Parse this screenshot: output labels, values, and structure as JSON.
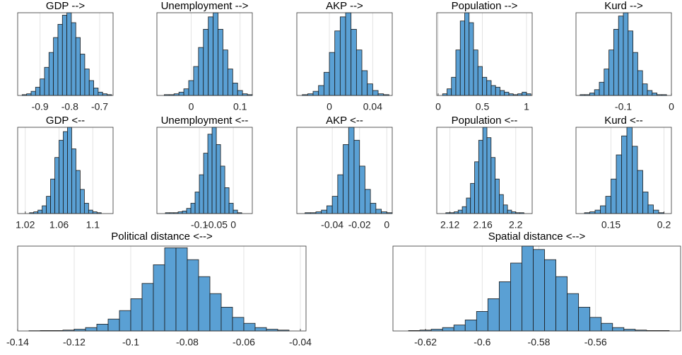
{
  "chart_data": [
    {
      "type": "histogram",
      "title": "GDP -->",
      "bins": [
        -0.96,
        -0.945,
        -0.93,
        -0.915,
        -0.9,
        -0.885,
        -0.87,
        -0.855,
        -0.84,
        -0.825,
        -0.81,
        -0.795,
        -0.78,
        -0.765,
        -0.75,
        -0.735,
        -0.72,
        -0.705,
        -0.69,
        -0.675,
        -0.66
      ],
      "values": [
        1,
        2,
        5,
        10,
        20,
        34,
        52,
        70,
        86,
        97,
        100,
        88,
        70,
        50,
        32,
        18,
        9,
        4,
        2,
        1
      ],
      "color": "#5aa0d4",
      "xlim": [
        -0.975,
        -0.655
      ],
      "xticks": [
        -0.9,
        -0.8,
        -0.7
      ],
      "ylim": [
        0,
        100
      ],
      "grid": true
    },
    {
      "type": "histogram",
      "title": "Unemployment -->",
      "bins": [
        -0.055,
        -0.045,
        -0.035,
        -0.025,
        -0.015,
        -0.005,
        0.005,
        0.015,
        0.025,
        0.035,
        0.045,
        0.055,
        0.065,
        0.075,
        0.085,
        0.095,
        0.105,
        0.115,
        0.125
      ],
      "values": [
        1,
        1,
        2,
        4,
        8,
        18,
        35,
        58,
        80,
        95,
        100,
        80,
        55,
        32,
        15,
        6,
        2,
        1
      ],
      "color": "#5aa0d4",
      "xlim": [
        -0.07,
        0.125
      ],
      "xticks": [
        0,
        0.1
      ],
      "ylim": [
        0,
        100
      ],
      "grid": true
    },
    {
      "type": "histogram",
      "title": "AKP -->",
      "bins": [
        -0.025,
        -0.02,
        -0.015,
        -0.01,
        -0.005,
        0,
        0.005,
        0.01,
        0.015,
        0.02,
        0.025,
        0.03,
        0.035,
        0.04,
        0.045,
        0.05,
        0.055
      ],
      "values": [
        1,
        2,
        5,
        12,
        28,
        52,
        78,
        95,
        100,
        80,
        55,
        30,
        14,
        6,
        2,
        1
      ],
      "color": "#5aa0d4",
      "xlim": [
        -0.03,
        0.058
      ],
      "xticks": [
        0,
        0.04
      ],
      "ylim": [
        0,
        100
      ],
      "grid": true
    },
    {
      "type": "histogram",
      "title": "Population -->",
      "bins": [
        0.05,
        0.1,
        0.15,
        0.2,
        0.25,
        0.3,
        0.35,
        0.4,
        0.45,
        0.5,
        0.55,
        0.6,
        0.65,
        0.7,
        0.75,
        0.8,
        0.85,
        0.9,
        0.95,
        1,
        1.05
      ],
      "values": [
        2,
        8,
        22,
        55,
        90,
        100,
        88,
        55,
        35,
        22,
        18,
        12,
        10,
        6,
        4,
        2,
        1,
        2,
        4,
        2
      ],
      "color": "#5aa0d4",
      "xlim": [
        -0.016,
        1.064
      ],
      "xticks": [
        0,
        0.5,
        1
      ],
      "ylim": [
        0,
        100
      ],
      "grid": true
    },
    {
      "type": "histogram",
      "title": "Kurd -->",
      "bins": [
        -0.19,
        -0.18,
        -0.17,
        -0.16,
        -0.15,
        -0.14,
        -0.13,
        -0.12,
        -0.11,
        -0.1,
        -0.09,
        -0.08,
        -0.07,
        -0.06,
        -0.05,
        -0.04,
        -0.03,
        -0.02,
        -0.01
      ],
      "values": [
        1,
        1,
        3,
        7,
        16,
        32,
        55,
        80,
        96,
        100,
        78,
        52,
        30,
        14,
        6,
        3,
        1,
        1
      ],
      "color": "#5aa0d4",
      "xlim": [
        -0.1985,
        0
      ],
      "xticks": [
        -0.1,
        0
      ],
      "ylim": [
        0,
        100
      ],
      "grid": true
    },
    {
      "type": "histogram",
      "title": "GDP <--",
      "bins": [
        1.025,
        1.03,
        1.035,
        1.04,
        1.045,
        1.05,
        1.055,
        1.06,
        1.065,
        1.07,
        1.075,
        1.08,
        1.085,
        1.09,
        1.095,
        1.1,
        1.105,
        1.11
      ],
      "values": [
        1,
        2,
        4,
        9,
        20,
        40,
        65,
        85,
        95,
        100,
        75,
        50,
        28,
        12,
        4,
        2,
        1
      ],
      "color": "#5aa0d4",
      "xlim": [
        1.011,
        1.124
      ],
      "xticks": [
        1.02,
        1.06,
        1.1
      ],
      "ylim": [
        0,
        100
      ],
      "grid": true
    },
    {
      "type": "histogram",
      "title": "Unemployment <--",
      "bins": [
        -0.2,
        -0.1875,
        -0.175,
        -0.1625,
        -0.15,
        -0.1375,
        -0.125,
        -0.1125,
        -0.1,
        -0.0875,
        -0.075,
        -0.0625,
        -0.05,
        -0.0375,
        -0.025,
        -0.0125,
        0,
        0.0125,
        0.025
      ],
      "values": [
        1,
        1,
        1,
        2,
        3,
        6,
        12,
        25,
        45,
        70,
        92,
        100,
        80,
        55,
        30,
        12,
        4,
        1
      ],
      "color": "#5aa0d4",
      "xlim": [
        -0.225,
        0.056
      ],
      "xticks": [
        -0.1,
        -0.05,
        0
      ],
      "ylim": [
        0,
        100
      ],
      "grid": true
    },
    {
      "type": "histogram",
      "title": "AKP <--",
      "bins": [
        -0.06,
        -0.056,
        -0.052,
        -0.048,
        -0.044,
        -0.04,
        -0.036,
        -0.032,
        -0.028,
        -0.024,
        -0.02,
        -0.016,
        -0.012,
        -0.008,
        -0.004,
        0,
        0.004
      ],
      "values": [
        1,
        1,
        2,
        4,
        9,
        20,
        45,
        80,
        100,
        85,
        55,
        28,
        12,
        5,
        2,
        1
      ],
      "color": "#5aa0d4",
      "xlim": [
        -0.066,
        0.004
      ],
      "xticks": [
        -0.04,
        -0.02,
        0
      ],
      "ylim": [
        0,
        100
      ],
      "grid": true
    },
    {
      "type": "histogram",
      "title": "Population <--",
      "bins": [
        2.115,
        2.12,
        2.125,
        2.13,
        2.135,
        2.14,
        2.145,
        2.15,
        2.155,
        2.16,
        2.165,
        2.17,
        2.175,
        2.18,
        2.185,
        2.19,
        2.195,
        2.2,
        2.205,
        2.21
      ],
      "values": [
        1,
        1,
        2,
        4,
        8,
        18,
        35,
        60,
        85,
        100,
        88,
        65,
        40,
        22,
        10,
        4,
        2,
        1,
        1
      ],
      "color": "#5aa0d4",
      "xlim": [
        2.104,
        2.22
      ],
      "xticks": [
        2.12,
        2.16,
        2.2
      ],
      "ylim": [
        0,
        100
      ],
      "grid": true
    },
    {
      "type": "histogram",
      "title": "Kurd <--",
      "bins": [
        0.125,
        0.13,
        0.135,
        0.14,
        0.145,
        0.15,
        0.155,
        0.16,
        0.165,
        0.17,
        0.175,
        0.18,
        0.185,
        0.19,
        0.195,
        0.2
      ],
      "values": [
        1,
        2,
        4,
        9,
        20,
        40,
        68,
        90,
        100,
        78,
        50,
        25,
        10,
        4,
        1
      ],
      "color": "#5aa0d4",
      "xlim": [
        0.117,
        0.207
      ],
      "xticks": [
        0.15,
        0.2
      ],
      "ylim": [
        0,
        100
      ],
      "grid": true
    },
    {
      "type": "histogram",
      "title": "Political distance <-->",
      "bins": [
        -0.136,
        -0.132,
        -0.128,
        -0.124,
        -0.12,
        -0.116,
        -0.112,
        -0.108,
        -0.104,
        -0.1,
        -0.096,
        -0.092,
        -0.088,
        -0.084,
        -0.08,
        -0.076,
        -0.072,
        -0.068,
        -0.064,
        -0.06,
        -0.056,
        -0.052,
        -0.048,
        -0.044
      ],
      "values": [
        0.3,
        0.5,
        0.5,
        1,
        2,
        4,
        8,
        14,
        24,
        38,
        56,
        78,
        98,
        98,
        84,
        64,
        44,
        28,
        16,
        9,
        4,
        2,
        1
      ],
      "color": "#5aa0d4",
      "xlim": [
        -0.14,
        -0.038
      ],
      "xticks": [
        -0.14,
        -0.12,
        -0.1,
        -0.08,
        -0.06,
        -0.04
      ],
      "ylim": [
        0,
        100
      ],
      "grid": true
    },
    {
      "type": "histogram",
      "title": "Spatial distance <-->",
      "bins": [
        -0.626,
        -0.622,
        -0.618,
        -0.614,
        -0.61,
        -0.606,
        -0.602,
        -0.598,
        -0.594,
        -0.59,
        -0.586,
        -0.582,
        -0.578,
        -0.574,
        -0.57,
        -0.566,
        -0.562,
        -0.558,
        -0.554,
        -0.55,
        -0.546,
        -0.542,
        -0.538,
        -0.534
      ],
      "values": [
        0.5,
        1,
        2,
        4,
        7,
        13,
        23,
        38,
        58,
        80,
        100,
        96,
        84,
        64,
        44,
        28,
        16,
        9,
        4,
        2,
        1,
        0.5,
        0.5
      ],
      "color": "#5aa0d4",
      "xlim": [
        -0.6315,
        -0.53
      ],
      "xticks": [
        -0.62,
        -0.6,
        -0.58,
        -0.56
      ],
      "ylim": [
        0,
        100
      ],
      "grid": true
    }
  ]
}
